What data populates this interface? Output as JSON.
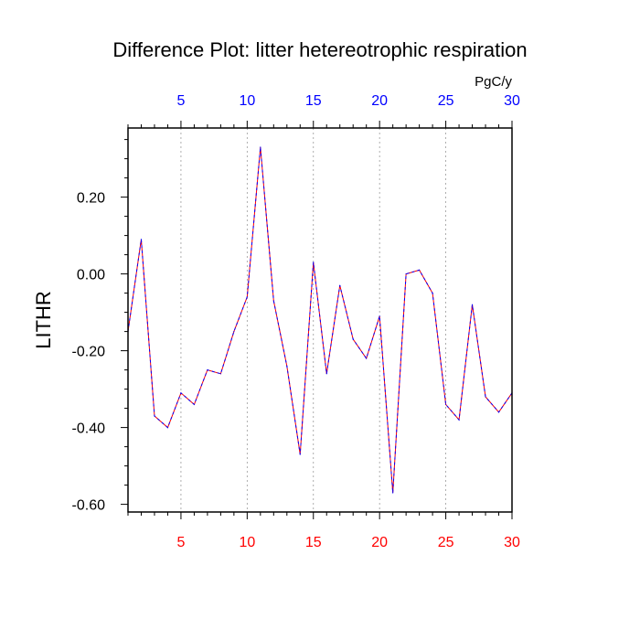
{
  "chart_data": {
    "type": "line",
    "title": "Difference Plot: litter hetereotrophic respiration",
    "units_label": "PgC/y",
    "ylabel": "LITHR",
    "xlim": [
      1,
      30
    ],
    "ylim": [
      -0.62,
      0.38
    ],
    "x_ticks": [
      5,
      10,
      15,
      20,
      25,
      30
    ],
    "x_tick_labels": [
      "5",
      "10",
      "15",
      "20",
      "25",
      "30"
    ],
    "y_ticks": [
      0.2,
      0.0,
      -0.2,
      -0.4,
      -0.6
    ],
    "y_tick_labels": [
      "0.20",
      "0.00",
      "-0.20",
      "-0.40",
      "-0.60"
    ],
    "grid": "vertical dotted",
    "colors": {
      "bottom_axis_labels": "#ff0000",
      "top_axis_labels": "#0000ff",
      "series_primary": "#ff0000",
      "series_overlay": "#0000ff"
    },
    "x": [
      1,
      2,
      3,
      4,
      5,
      6,
      7,
      8,
      9,
      10,
      11,
      12,
      13,
      14,
      15,
      16,
      17,
      18,
      19,
      20,
      21,
      22,
      23,
      24,
      25,
      26,
      27,
      28,
      29,
      30
    ],
    "series": [
      {
        "name": "difference",
        "values": [
          -0.15,
          0.09,
          -0.37,
          -0.4,
          -0.31,
          -0.34,
          -0.25,
          -0.26,
          -0.15,
          -0.06,
          0.33,
          -0.07,
          -0.24,
          -0.47,
          0.03,
          -0.26,
          -0.03,
          -0.17,
          -0.22,
          -0.11,
          -0.57,
          0.0,
          0.01,
          -0.05,
          -0.34,
          -0.38,
          -0.08,
          -0.32,
          -0.36,
          -0.31
        ]
      }
    ]
  }
}
